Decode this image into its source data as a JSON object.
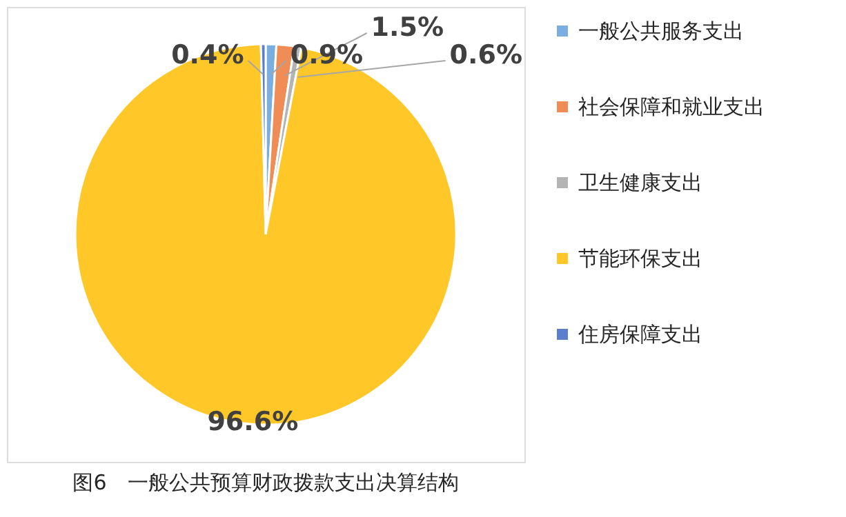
{
  "chart_data": {
    "type": "pie",
    "title": "图6　一般公共预算财政拨款支出决算结构",
    "categories": [
      "一般公共服务支出",
      "社会保障和就业支出",
      "卫生健康支出",
      "节能环保支出",
      "住房保障支出"
    ],
    "values": [
      0.9,
      1.5,
      0.6,
      96.6,
      0.4
    ],
    "colors": [
      "#7aaee0",
      "#f08c55",
      "#b4b4b4",
      "#ffc828",
      "#5b7fcc"
    ],
    "value_labels": [
      "0.9%",
      "1.5%",
      "0.6%",
      "96.6%",
      "0.4%"
    ],
    "legend": "right"
  }
}
